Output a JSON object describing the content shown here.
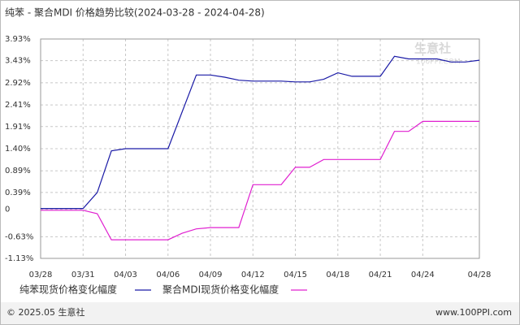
{
  "chart_data": {
    "type": "line",
    "title": "纯苯 - 聚合MDI 价格趋势比较(2024-03-28 - 2024-04-28)",
    "watermark": "生意社",
    "watermark_sub": "100PPI.COM",
    "categories": [
      "03/28",
      null,
      null,
      "03/31",
      null,
      null,
      "04/03",
      null,
      null,
      "04/06",
      null,
      null,
      "04/09",
      null,
      null,
      "04/12",
      null,
      null,
      "04/15",
      null,
      null,
      "04/18",
      null,
      null,
      "04/21",
      null,
      null,
      "04/24",
      null,
      null,
      null,
      "04/28"
    ],
    "series": [
      {
        "name": "纯苯现货价格变化幅度",
        "color": "#1a1aa6",
        "values": [
          0.02,
          0.02,
          0.02,
          0.02,
          0.39,
          1.35,
          1.4,
          1.4,
          1.4,
          1.4,
          2.25,
          3.1,
          3.1,
          3.05,
          2.98,
          2.96,
          2.96,
          2.96,
          2.94,
          2.94,
          3.0,
          3.15,
          3.07,
          3.07,
          3.07,
          3.53,
          3.47,
          3.47,
          3.47,
          3.4,
          3.4,
          3.44
        ]
      },
      {
        "name": "聚合MDI现货价格变化幅度",
        "color": "#e020d0",
        "values": [
          -0.02,
          -0.02,
          -0.02,
          -0.02,
          -0.1,
          -0.7,
          -0.7,
          -0.7,
          -0.7,
          -0.7,
          -0.55,
          -0.45,
          -0.42,
          -0.42,
          -0.42,
          0.57,
          0.57,
          0.57,
          0.97,
          0.97,
          1.15,
          1.15,
          1.15,
          1.15,
          1.15,
          1.8,
          1.8,
          2.03,
          2.03,
          2.03,
          2.03,
          2.03
        ]
      }
    ],
    "ylim": [
      -1.13,
      3.93
    ],
    "yticks": [
      {
        "value": -1.13,
        "label": "-1.13%"
      },
      {
        "value": -0.63,
        "label": "-0.63%"
      },
      0,
      {
        "value": 0.39,
        "label": "0.39%"
      },
      {
        "value": 0.89,
        "label": "0.89%"
      },
      {
        "value": 1.4,
        "label": "1.40%"
      },
      {
        "value": 1.91,
        "label": "1.91%"
      },
      {
        "value": 2.41,
        "label": "2.41%"
      },
      {
        "value": 2.92,
        "label": "2.92%"
      },
      {
        "value": 3.43,
        "label": "3.43%"
      },
      {
        "value": 3.93,
        "label": "3.93%"
      }
    ],
    "grid": true,
    "footer_left": "© 2025.05 生意社",
    "footer_right": "www.100PPI.com"
  }
}
